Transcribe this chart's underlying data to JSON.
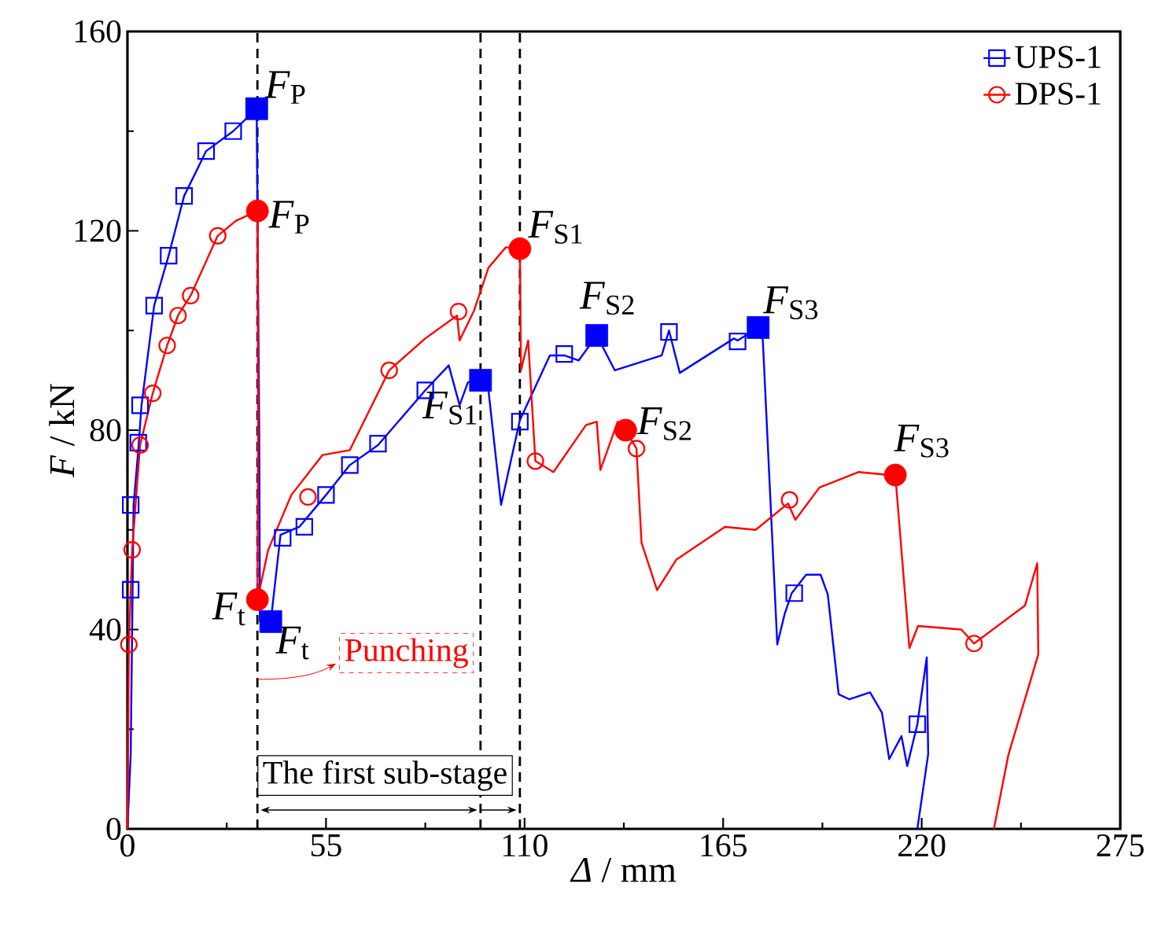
{
  "chart_data": {
    "type": "line",
    "xlabel": "*Δ* / mm",
    "ylabel": "*F* / kN",
    "xlim": [
      0,
      275
    ],
    "xticks": [
      0,
      55,
      110,
      165,
      220,
      275
    ],
    "ylim": [
      0,
      160
    ],
    "yticks": [
      0,
      40,
      80,
      120,
      160
    ],
    "grid": false,
    "legend": "top right",
    "series": [
      {
        "name": "UPS-1",
        "type": "line",
        "color": "#0000ff",
        "x": [
          0,
          0.9,
          1.7,
          3,
          3.9,
          7.4,
          11.4,
          15.7,
          21.8,
          29.3,
          35.8,
          36.5,
          36.7,
          39.7,
          42.4,
          47.6,
          55,
          61.6,
          69.4,
          82.5,
          89,
          92,
          94.3,
          97.8,
          100,
          103.5,
          108.7,
          117,
          121,
          125,
          130,
          135,
          148,
          150,
          153,
          168,
          169,
          174.7,
          176,
          180,
          182,
          184,
          188,
          192,
          194,
          197,
          200,
          205.7,
          209,
          211,
          214.4,
          216,
          218.8,
          221.4,
          221.8,
          218.8
        ],
        "values": [
          0,
          14.8,
          65,
          76,
          85,
          105,
          115,
          127,
          136,
          140,
          144.5,
          80,
          41.6,
          41.6,
          59,
          60.6,
          67,
          73,
          77,
          88,
          93,
          85,
          89.6,
          90,
          88,
          65,
          82,
          95,
          95,
          94,
          99,
          92,
          95,
          100,
          91.5,
          98.4,
          98,
          100.6,
          98,
          37,
          43,
          47.3,
          51,
          51,
          47,
          27,
          26,
          27.4,
          23.3,
          14,
          18.6,
          12.6,
          21,
          34.4,
          15,
          0
        ]
      },
      {
        "type": "scatter",
        "color": "#0000ff",
        "marker": "square",
        "x": [
          0.9,
          0.9,
          3,
          3.5,
          7.4,
          11.4,
          15.7,
          21.8,
          29.3,
          43,
          49,
          55,
          61.6,
          69.4,
          82.5,
          108.7,
          121,
          150,
          169,
          184.7,
          218.8
        ],
        "values": [
          48,
          65,
          77.5,
          85,
          105,
          115,
          127,
          136,
          140,
          58.4,
          60.6,
          67,
          73,
          77.3,
          88,
          81.7,
          95.3,
          99.7,
          97.8,
          47.3,
          21
        ]
      },
      {
        "name": "DPS-1",
        "type": "line",
        "color": "#ff0000",
        "x": [
          0,
          0.4,
          1.3,
          3.5,
          7,
          11,
          14,
          17.5,
          25,
          30,
          36,
          36.2,
          36,
          39,
          45.4,
          54,
          61.6,
          72.5,
          82.5,
          91.3,
          92,
          96,
          100,
          104.8,
          108.7,
          109,
          111,
          113,
          118,
          127,
          130,
          131,
          135.8,
          138,
          141,
          142.4,
          146.7,
          152,
          165.5,
          174,
          183,
          185,
          191.7,
          202.6,
          211,
          212.7,
          216.6,
          219,
          231,
          234.5,
          248.6,
          252,
          252.3,
          244,
          240
        ],
        "values": [
          0,
          37,
          56,
          77,
          87.4,
          97,
          103,
          107,
          119,
          122,
          124,
          80,
          46,
          56,
          67,
          75,
          76,
          92,
          98.4,
          103,
          98,
          104,
          112.6,
          116.7,
          116.4,
          92,
          98,
          73.8,
          71.6,
          81,
          81.7,
          72,
          81.7,
          80,
          76.3,
          57.4,
          47.9,
          54,
          60.6,
          60,
          65.3,
          62,
          68.5,
          71.6,
          71,
          71,
          36.3,
          40.7,
          40,
          37.2,
          44.8,
          53.3,
          35,
          14.8,
          0
        ]
      },
      {
        "type": "scatter",
        "color": "#ff0000",
        "marker": "circle",
        "x": [
          0.4,
          1.3,
          3.5,
          7,
          11,
          14,
          17.5,
          25,
          50,
          72.5,
          91.7,
          113,
          141,
          183.4,
          234.5
        ],
        "values": [
          37,
          56,
          77,
          87.4,
          97,
          103,
          107,
          119,
          66.6,
          92,
          103.8,
          73.8,
          76.3,
          66,
          37.2
        ]
      },
      {
        "type": "scatter",
        "color": "#0000ff",
        "marker": "square",
        "x": [
          35.8,
          39.7,
          97.8,
          130,
          174.7
        ],
        "values": [
          144.5,
          41.6,
          90,
          99,
          100.6
        ]
      },
      {
        "type": "scatter",
        "color": "#ff0000",
        "marker": "circle",
        "x": [
          36,
          36,
          108.7,
          138,
          212.7
        ],
        "values": [
          124,
          46,
          116.4,
          80,
          71
        ]
      }
    ],
    "ref_lines": [
      {
        "axis": "x",
        "value": 36,
        "color": "#000000",
        "line_style": "dashed"
      },
      {
        "axis": "x",
        "value": 97.8,
        "color": "#000000",
        "line_style": "dashed"
      },
      {
        "axis": "x",
        "value": 108.7,
        "color": "#000000",
        "line_style": "dashed"
      }
    ],
    "annotations": [
      {
        "text": "*F*$_{P}$",
        "x": 35.8,
        "y": 144.5
      },
      {
        "text": "*F*$_{P}$",
        "x": 36,
        "y": 124
      },
      {
        "text": "*F*$_{S1}$",
        "x": 108.7,
        "y": 116.4
      },
      {
        "text": "*F*$_{S1}$",
        "x": 97.8,
        "y": 90
      },
      {
        "text": "*F*$_{S2}$",
        "x": 130,
        "y": 99
      },
      {
        "text": "*F*$_{S2}$",
        "x": 138,
        "y": 80
      },
      {
        "text": "*F*$_{S3}$",
        "x": 174.7,
        "y": 100.6
      },
      {
        "text": "*F*$_{S3}$",
        "x": 212.7,
        "y": 71
      },
      {
        "text": "*F*$_{t}$",
        "x": 36,
        "y": 46
      },
      {
        "text": "*F*$_{t}$",
        "x": 39.7,
        "y": 41.6
      },
      {
        "text": "Punching",
        "x": 36,
        "y": 30
      },
      "The first sub-stage"
    ]
  }
}
